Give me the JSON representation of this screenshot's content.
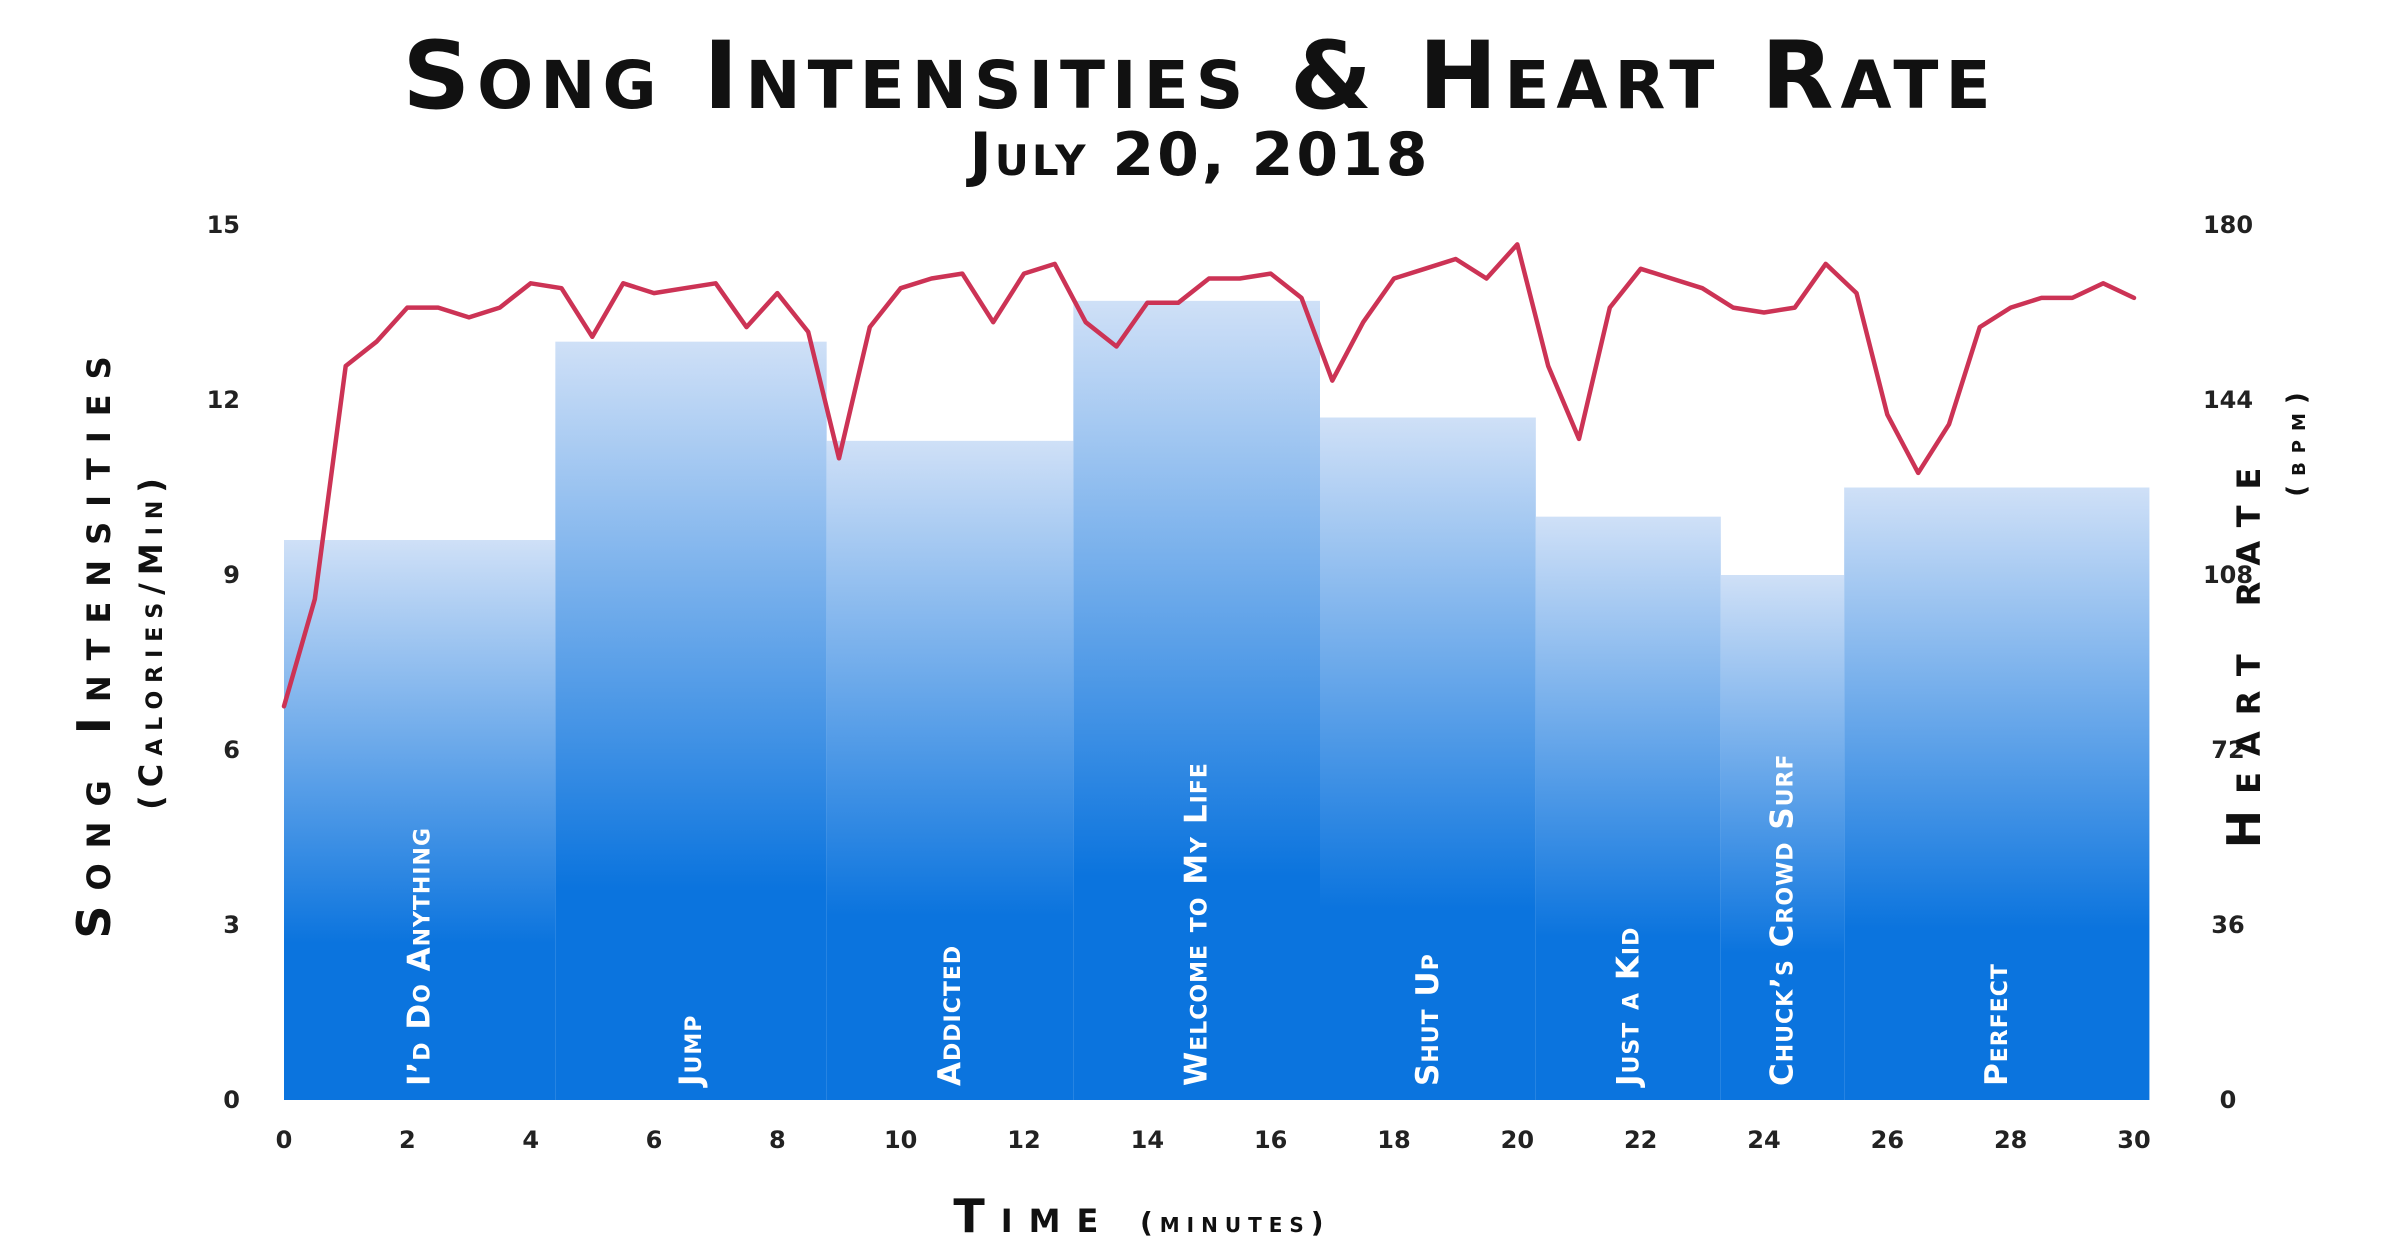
{
  "chart_data": {
    "type": "bar",
    "title": "Song Intensities & Heart Rate",
    "subtitle": "July 20, 2018",
    "xlabel": "Time",
    "xlabel_unit": "(minutes)",
    "ylabel": "Song Intensities",
    "ylabel_unit": "(Calories/Min)",
    "y2label": "Heart rate",
    "y2label_unit": "(bpm)",
    "xlim": [
      0,
      30
    ],
    "ylim": [
      0,
      15
    ],
    "y2lim": [
      0,
      180
    ],
    "x_ticks": [
      "0",
      "2",
      "4",
      "6",
      "8",
      "10",
      "12",
      "14",
      "16",
      "18",
      "20",
      "22",
      "24",
      "26",
      "28",
      "30"
    ],
    "y_ticks": [
      "0",
      "3",
      "6",
      "9",
      "12",
      "15"
    ],
    "y2_ticks": [
      "0",
      "36",
      "72",
      "108",
      "144",
      "180"
    ],
    "series": [
      {
        "name": "Song Intensities",
        "kind": "bar",
        "color_top": "#cfe0f7",
        "color_bottom": "#0b74de",
        "bars": [
          {
            "label": "I’d Do Anything",
            "start": 0.0,
            "end": 4.4,
            "value": 9.6
          },
          {
            "label": "Jump",
            "start": 4.4,
            "end": 8.8,
            "value": 13.0
          },
          {
            "label": "Addicted",
            "start": 8.8,
            "end": 12.8,
            "value": 11.3
          },
          {
            "label": "Welcome to My Life",
            "start": 12.8,
            "end": 16.8,
            "value": 13.7
          },
          {
            "label": "Shut Up",
            "start": 16.8,
            "end": 20.3,
            "value": 11.7
          },
          {
            "label": "Just a Kid",
            "start": 20.3,
            "end": 23.3,
            "value": 10.0
          },
          {
            "label": "Chuck’s Crowd Surf",
            "start": 23.3,
            "end": 25.3,
            "value": 9.0
          },
          {
            "label": "Perfect",
            "start": 25.3,
            "end": 30.25,
            "value": 10.5
          }
        ]
      },
      {
        "name": "Heart rate",
        "kind": "line",
        "axis": "right",
        "color": "#cc3355",
        "x": [
          0,
          0.5,
          1,
          1.5,
          2,
          2.5,
          3,
          3.5,
          4,
          4.5,
          5,
          5.5,
          6,
          6.5,
          7,
          7.5,
          8,
          8.5,
          9,
          9.5,
          10,
          10.5,
          11,
          11.5,
          12,
          12.5,
          13,
          13.5,
          14,
          14.5,
          15,
          15.5,
          16,
          16.5,
          17,
          17.5,
          18,
          18.5,
          19,
          19.5,
          20,
          20.5,
          21,
          21.5,
          22,
          22.5,
          23,
          23.5,
          24,
          24.5,
          25,
          25.5,
          26,
          26.5,
          27,
          27.5,
          28,
          28.5,
          29,
          29.5,
          30
        ],
        "y": [
          81,
          103,
          151,
          156,
          163,
          163,
          161,
          163,
          168,
          167,
          157,
          168,
          166,
          167,
          168,
          159,
          166,
          158,
          132,
          159,
          167,
          169,
          170,
          160,
          170,
          172,
          160,
          155,
          164,
          164,
          169,
          169,
          170,
          165,
          148,
          160,
          169,
          171,
          173,
          169,
          176,
          151,
          136,
          163,
          171,
          169,
          167,
          163,
          162,
          163,
          172,
          166,
          141,
          129,
          139,
          159,
          163,
          165,
          165,
          168,
          165
        ]
      }
    ],
    "grid": false,
    "legend": "none"
  }
}
